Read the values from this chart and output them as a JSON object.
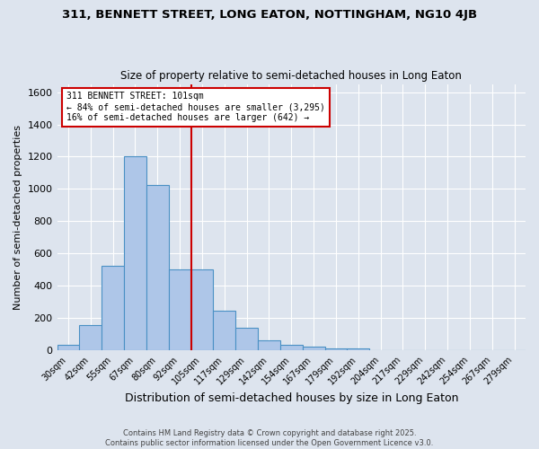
{
  "title_line1": "311, BENNETT STREET, LONG EATON, NOTTINGHAM, NG10 4JB",
  "title_line2": "Size of property relative to semi-detached houses in Long Eaton",
  "xlabel": "Distribution of semi-detached houses by size in Long Eaton",
  "ylabel": "Number of semi-detached properties",
  "categories": [
    "30sqm",
    "42sqm",
    "55sqm",
    "67sqm",
    "80sqm",
    "92sqm",
    "105sqm",
    "117sqm",
    "129sqm",
    "142sqm",
    "154sqm",
    "167sqm",
    "179sqm",
    "192sqm",
    "204sqm",
    "217sqm",
    "229sqm",
    "242sqm",
    "254sqm",
    "267sqm",
    "279sqm"
  ],
  "values": [
    35,
    160,
    525,
    1200,
    1025,
    500,
    500,
    245,
    140,
    60,
    35,
    25,
    15,
    10,
    0,
    0,
    0,
    0,
    0,
    0,
    0
  ],
  "bar_color": "#aec6e8",
  "bar_edge_color": "#4a90c4",
  "red_line_index": 6,
  "ylim": [
    0,
    1650
  ],
  "yticks": [
    0,
    200,
    400,
    600,
    800,
    1000,
    1200,
    1400,
    1600
  ],
  "bg_color": "#dde4ee",
  "plot_bg_color": "#dde4ee",
  "annotation_title": "311 BENNETT STREET: 101sqm",
  "annotation_line2": "← 84% of semi-detached houses are smaller (3,295)",
  "annotation_line3": "16% of semi-detached houses are larger (642) →",
  "annotation_box_color": "#ffffff",
  "annotation_box_edge": "#cc0000",
  "footer_line1": "Contains HM Land Registry data © Crown copyright and database right 2025.",
  "footer_line2": "Contains public sector information licensed under the Open Government Licence v3.0."
}
